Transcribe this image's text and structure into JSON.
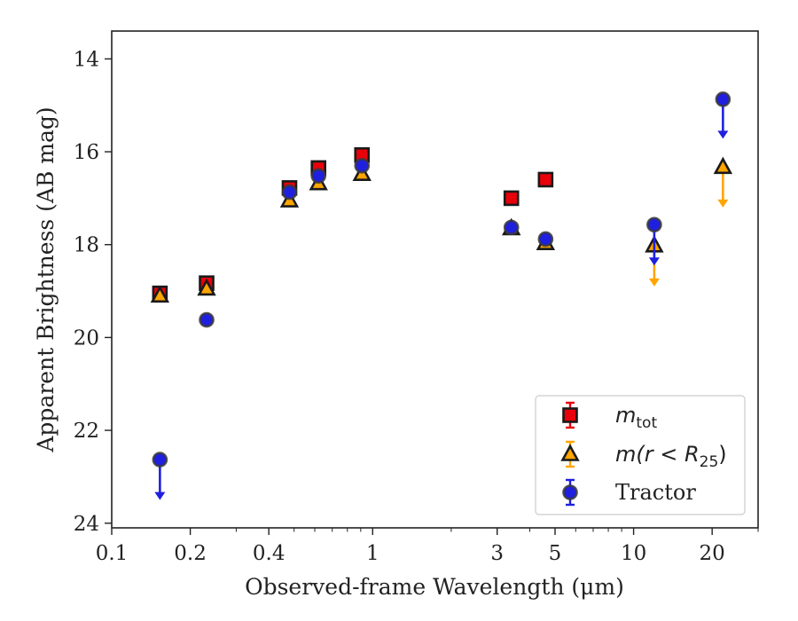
{
  "chart_data": {
    "type": "scatter",
    "xlabel": "Observed-frame Wavelength (μm)",
    "ylabel": "Apparent Brightness (AB mag)",
    "x_scale": "log",
    "xlim": [
      0.1,
      30
    ],
    "ylim": [
      24.1,
      13.4
    ],
    "y_inverted": true,
    "x_ticks": [
      {
        "value": 0.1,
        "label": "0.1"
      },
      {
        "value": 0.2,
        "label": "0.2"
      },
      {
        "value": 0.4,
        "label": "0.4"
      },
      {
        "value": 1,
        "label": "1"
      },
      {
        "value": 3,
        "label": "3"
      },
      {
        "value": 5,
        "label": "5"
      },
      {
        "value": 10,
        "label": "10"
      },
      {
        "value": 20,
        "label": "20"
      }
    ],
    "x_minor_ticks": [
      0.3,
      0.5,
      0.6,
      0.7,
      0.8,
      0.9,
      2,
      4,
      6,
      7,
      8,
      9,
      30
    ],
    "y_ticks": [
      {
        "value": 14,
        "label": "14"
      },
      {
        "value": 16,
        "label": "16"
      },
      {
        "value": 18,
        "label": "18"
      },
      {
        "value": 20,
        "label": "20"
      },
      {
        "value": 22,
        "label": "22"
      },
      {
        "value": 24,
        "label": "24"
      }
    ],
    "grid": false,
    "legend_position": "lower-right",
    "series": [
      {
        "name": "m_tot",
        "legend_label": "m",
        "legend_sub": "tot",
        "marker": "square",
        "color": "#e8000b",
        "errcolor": "#e8000b",
        "points": [
          {
            "x": 0.153,
            "y": 19.05
          },
          {
            "x": 0.231,
            "y": 18.83
          },
          {
            "x": 0.48,
            "y": 16.78
          },
          {
            "x": 0.62,
            "y": 16.35
          },
          {
            "x": 0.91,
            "y": 16.07
          },
          {
            "x": 3.4,
            "y": 17.0
          },
          {
            "x": 4.6,
            "y": 16.6
          }
        ]
      },
      {
        "name": "m(r < R25)",
        "legend_label": "m(r < R",
        "legend_sub": "25",
        "legend_suffix": ")",
        "marker": "triangle",
        "color": "#ffa500",
        "errcolor": "#ffa500",
        "points": [
          {
            "x": 0.153,
            "y": 19.1
          },
          {
            "x": 0.231,
            "y": 18.95
          },
          {
            "x": 0.48,
            "y": 17.05
          },
          {
            "x": 0.62,
            "y": 16.68
          },
          {
            "x": 0.91,
            "y": 16.48
          },
          {
            "x": 3.4,
            "y": 17.65
          },
          {
            "x": 4.6,
            "y": 17.97
          },
          {
            "x": 12.0,
            "y": 18.02,
            "upper_limit": true,
            "arrow_to": 18.9
          },
          {
            "x": 22.0,
            "y": 16.33,
            "upper_limit": true,
            "arrow_to": 17.2
          }
        ]
      },
      {
        "name": "Tractor",
        "legend_label": "Tractor",
        "marker": "circle",
        "color": "#1f1fe0",
        "errcolor": "#1f1fe0",
        "points": [
          {
            "x": 0.153,
            "y": 22.63,
            "upper_limit": true,
            "arrow_to": 23.5
          },
          {
            "x": 0.231,
            "y": 19.62
          },
          {
            "x": 0.48,
            "y": 16.87
          },
          {
            "x": 0.62,
            "y": 16.52
          },
          {
            "x": 0.91,
            "y": 16.3
          },
          {
            "x": 3.4,
            "y": 17.63
          },
          {
            "x": 4.6,
            "y": 17.88
          },
          {
            "x": 12.0,
            "y": 17.57,
            "upper_limit": true,
            "arrow_to": 18.45
          },
          {
            "x": 22.0,
            "y": 14.87,
            "upper_limit": true,
            "arrow_to": 15.72
          }
        ]
      }
    ]
  }
}
